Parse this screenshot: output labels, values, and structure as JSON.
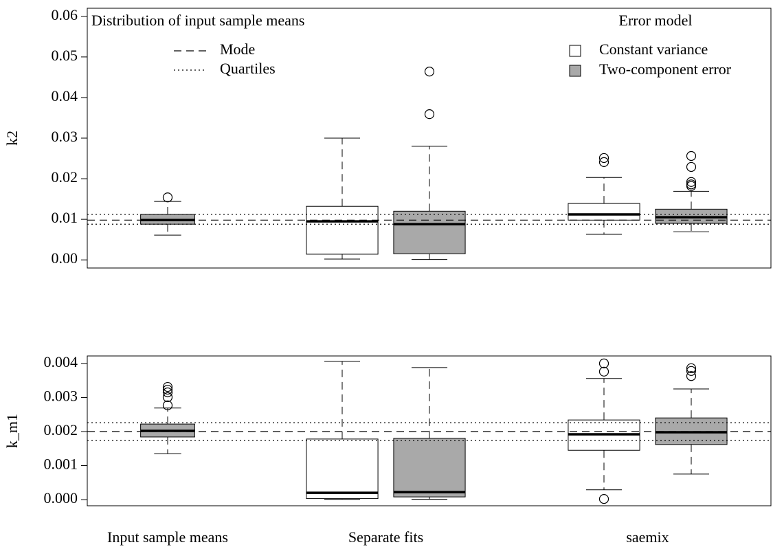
{
  "chart_data": [
    {
      "type": "boxplot",
      "ylabel": "k2",
      "ylim": [
        -0.002,
        0.062
      ],
      "yticks": [
        {
          "value": 0,
          "label": "0.00"
        },
        0.01,
        0.02,
        0.03,
        0.04,
        0.05,
        0.06
      ],
      "reference_title": "Distribution of input sample means",
      "reference_lines": [
        {
          "name": "Mode",
          "style": "dashed",
          "values": [
            0.0098
          ]
        },
        {
          "name": "Quartiles",
          "style": "dotted",
          "values": [
            0.0112,
            0.0088
          ]
        }
      ],
      "legend_title": "Error model",
      "series": [
        {
          "name": "Constant variance",
          "color": "#ffffff",
          "boxes": [
            null,
            {
              "whisker_low": 0.0002,
              "q1": 0.0014,
              "median": 0.0095,
              "q3": 0.0132,
              "whisker_high": 0.03,
              "outliers": []
            },
            {
              "whisker_low": 0.0063,
              "q1": 0.0098,
              "median": 0.0112,
              "q3": 0.0139,
              "whisker_high": 0.0203,
              "outliers": [
                0.0251,
                0.0241
              ]
            }
          ]
        },
        {
          "name": "Two-component error",
          "color": "#a9a9a9",
          "boxes": [
            {
              "whisker_low": 0.0061,
              "q1": 0.0088,
              "median": 0.0098,
              "q3": 0.0112,
              "whisker_high": 0.0144,
              "outliers": [
                0.0154
              ]
            },
            {
              "whisker_low": 0.0001,
              "q1": 0.0015,
              "median": 0.0088,
              "q3": 0.012,
              "whisker_high": 0.028,
              "outliers": [
                0.0359,
                0.0464
              ]
            },
            {
              "whisker_low": 0.0069,
              "q1": 0.009,
              "median": 0.0105,
              "q3": 0.0125,
              "whisker_high": 0.0169,
              "outliers": [
                0.0256,
                0.0229,
                0.0192,
                0.0186,
                0.0182
              ]
            }
          ]
        }
      ]
    },
    {
      "type": "boxplot",
      "ylabel": "k_m1",
      "ylim": [
        -0.00018,
        0.00422
      ],
      "yticks": [
        {
          "value": 0,
          "label": "0.000"
        },
        0.001,
        0.002,
        0.003,
        0.004
      ],
      "categories": [
        "Input sample means",
        "Separate fits",
        "saemix"
      ],
      "reference_lines": [
        {
          "style": "dashed",
          "values": [
            0.002
          ]
        },
        {
          "style": "dotted",
          "values": [
            0.00226,
            0.00174
          ]
        }
      ],
      "series": [
        {
          "color": "#ffffff",
          "boxes": [
            null,
            {
              "whisker_low": 1e-05,
              "q1": 3e-05,
              "median": 0.0002,
              "q3": 0.00178,
              "whisker_high": 0.00406,
              "outliers": []
            },
            {
              "whisker_low": 0.00029,
              "q1": 0.00145,
              "median": 0.00192,
              "q3": 0.00234,
              "whisker_high": 0.00356,
              "outliers": [
                2e-05,
                0.004,
                0.00376
              ]
            }
          ]
        },
        {
          "color": "#a9a9a9",
          "boxes": [
            {
              "whisker_low": 0.00135,
              "q1": 0.00184,
              "median": 0.00202,
              "q3": 0.00222,
              "whisker_high": 0.00269,
              "outliers": [
                0.00277,
                0.00301,
                0.00315,
                0.00323,
                0.00331
              ]
            },
            {
              "whisker_low": 1e-05,
              "q1": 8e-05,
              "median": 0.00022,
              "q3": 0.0018,
              "whisker_high": 0.00388,
              "outliers": []
            },
            {
              "whisker_low": 0.00075,
              "q1": 0.00162,
              "median": 0.00198,
              "q3": 0.0024,
              "whisker_high": 0.00325,
              "outliers": [
                0.00386,
                0.00378,
                0.00363
              ]
            }
          ]
        }
      ]
    }
  ]
}
